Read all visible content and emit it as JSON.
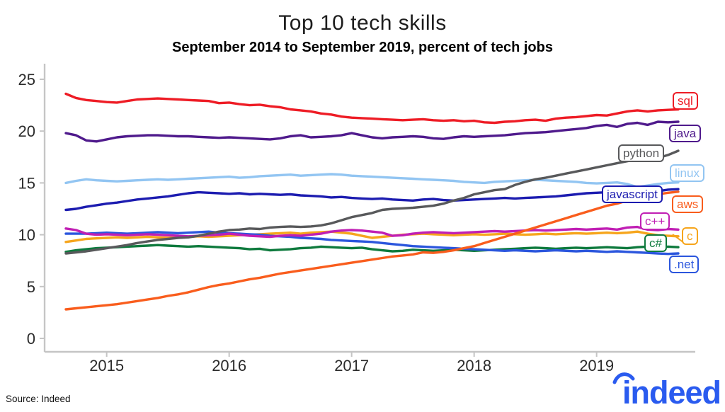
{
  "footer": {
    "source": "Source: Indeed",
    "logo_text": "indeed",
    "logo_color": "#2a5bef"
  },
  "chart_data": {
    "type": "line",
    "title": "Top 10 tech skills",
    "subtitle": "September 2014 to September 2019, percent of tech jobs",
    "grid": false,
    "legend_position": "right-inline-labels",
    "x_axis": {
      "unit": "month",
      "start": "September 2014",
      "end": "September 2019",
      "range_months": [
        0,
        60
      ],
      "tick_labels": [
        "2015",
        "2016",
        "2017",
        "2018",
        "2019"
      ],
      "tick_months": [
        4,
        16,
        28,
        40,
        52
      ]
    },
    "y_axis": {
      "label": "percent of tech jobs",
      "range": [
        0,
        25
      ],
      "ticks": [
        0,
        5,
        10,
        15,
        20,
        25
      ]
    },
    "axis_color": "#c5c5c5",
    "tick_text_color": "#2b2b2b",
    "series": [
      {
        "name": "sql",
        "color": "#ee1c25",
        "values": [
          23.6,
          23.2,
          23.0,
          22.9,
          22.8,
          22.75,
          22.9,
          23.05,
          23.1,
          23.15,
          23.1,
          23.05,
          23.0,
          22.95,
          22.9,
          22.7,
          22.75,
          22.6,
          22.5,
          22.55,
          22.4,
          22.3,
          22.1,
          22.0,
          21.9,
          21.7,
          21.6,
          21.4,
          21.3,
          21.25,
          21.2,
          21.15,
          21.1,
          21.05,
          21.1,
          21.15,
          21.05,
          21.0,
          21.05,
          20.95,
          21.0,
          20.85,
          20.8,
          20.9,
          20.95,
          21.05,
          21.1,
          21.0,
          21.2,
          21.3,
          21.35,
          21.45,
          21.55,
          21.5,
          21.7,
          21.9,
          22.0,
          21.9,
          22.0,
          22.05,
          22.1
        ]
      },
      {
        "name": "java",
        "color": "#4f1a8c",
        "values": [
          19.8,
          19.6,
          19.1,
          19.0,
          19.2,
          19.4,
          19.5,
          19.55,
          19.6,
          19.6,
          19.55,
          19.5,
          19.5,
          19.45,
          19.4,
          19.35,
          19.4,
          19.35,
          19.3,
          19.25,
          19.2,
          19.3,
          19.5,
          19.6,
          19.4,
          19.45,
          19.5,
          19.6,
          19.8,
          19.6,
          19.4,
          19.3,
          19.4,
          19.45,
          19.5,
          19.45,
          19.3,
          19.25,
          19.4,
          19.5,
          19.45,
          19.5,
          19.55,
          19.6,
          19.7,
          19.8,
          19.85,
          19.9,
          20.0,
          20.1,
          20.2,
          20.3,
          20.5,
          20.6,
          20.4,
          20.7,
          20.8,
          20.6,
          20.9,
          20.85,
          20.9
        ]
      },
      {
        "name": "python",
        "color": "#58595b",
        "values": [
          8.2,
          8.3,
          8.4,
          8.55,
          8.7,
          8.85,
          9.0,
          9.2,
          9.35,
          9.5,
          9.6,
          9.7,
          9.75,
          9.9,
          10.1,
          10.3,
          10.45,
          10.5,
          10.6,
          10.55,
          10.7,
          10.75,
          10.8,
          10.75,
          10.8,
          10.9,
          11.1,
          11.4,
          11.7,
          11.9,
          12.1,
          12.4,
          12.5,
          12.55,
          12.6,
          12.7,
          12.8,
          13.0,
          13.3,
          13.55,
          13.9,
          14.1,
          14.3,
          14.4,
          14.8,
          15.1,
          15.35,
          15.5,
          15.7,
          15.9,
          16.1,
          16.3,
          16.5,
          16.7,
          16.9,
          17.1,
          17.3,
          17.4,
          17.4,
          17.7,
          18.1
        ]
      },
      {
        "name": "linux",
        "color": "#92c5f2",
        "values": [
          15.0,
          15.2,
          15.35,
          15.25,
          15.2,
          15.15,
          15.2,
          15.25,
          15.3,
          15.35,
          15.3,
          15.35,
          15.4,
          15.45,
          15.5,
          15.55,
          15.6,
          15.5,
          15.55,
          15.65,
          15.7,
          15.75,
          15.8,
          15.7,
          15.75,
          15.8,
          15.85,
          15.8,
          15.7,
          15.65,
          15.6,
          15.55,
          15.5,
          15.45,
          15.4,
          15.35,
          15.3,
          15.25,
          15.2,
          15.1,
          15.05,
          15.0,
          15.1,
          15.15,
          15.2,
          15.25,
          15.3,
          15.25,
          15.2,
          15.15,
          15.1,
          15.0,
          14.95,
          15.0,
          15.05,
          14.9,
          14.6,
          14.75,
          14.9,
          15.0,
          15.05
        ]
      },
      {
        "name": "javascript",
        "color": "#1c1cb0",
        "values": [
          12.4,
          12.5,
          12.7,
          12.85,
          13.0,
          13.1,
          13.25,
          13.4,
          13.5,
          13.6,
          13.7,
          13.85,
          14.0,
          14.1,
          14.05,
          14.0,
          13.95,
          14.0,
          13.9,
          13.95,
          13.9,
          13.85,
          13.9,
          13.8,
          13.75,
          13.7,
          13.6,
          13.65,
          13.55,
          13.5,
          13.45,
          13.5,
          13.4,
          13.35,
          13.3,
          13.4,
          13.45,
          13.35,
          13.3,
          13.35,
          13.4,
          13.45,
          13.5,
          13.55,
          13.5,
          13.55,
          13.6,
          13.65,
          13.7,
          13.8,
          13.9,
          14.0,
          14.05,
          14.1,
          14.0,
          14.1,
          14.2,
          14.25,
          14.2,
          14.35,
          14.4
        ]
      },
      {
        "name": "aws",
        "color": "#f95d1d",
        "values": [
          2.8,
          2.9,
          3.0,
          3.1,
          3.2,
          3.3,
          3.45,
          3.6,
          3.75,
          3.9,
          4.1,
          4.25,
          4.45,
          4.7,
          4.95,
          5.15,
          5.3,
          5.5,
          5.7,
          5.85,
          6.05,
          6.25,
          6.4,
          6.55,
          6.7,
          6.85,
          7.0,
          7.15,
          7.3,
          7.45,
          7.6,
          7.75,
          7.9,
          8.0,
          8.1,
          8.3,
          8.25,
          8.35,
          8.5,
          8.7,
          8.9,
          9.2,
          9.5,
          9.8,
          10.1,
          10.4,
          10.7,
          11.0,
          11.3,
          11.6,
          11.9,
          12.2,
          12.5,
          12.8,
          13.0,
          13.3,
          13.5,
          13.7,
          13.9,
          14.05,
          14.15
        ]
      },
      {
        "name": "c++",
        "color": "#c01fb4",
        "values": [
          10.6,
          10.45,
          10.1,
          10.0,
          10.05,
          10.0,
          9.95,
          10.0,
          10.05,
          10.0,
          9.95,
          9.9,
          9.85,
          9.9,
          9.95,
          10.0,
          10.1,
          10.0,
          9.9,
          9.85,
          9.8,
          9.9,
          9.95,
          9.9,
          10.0,
          10.1,
          10.3,
          10.4,
          10.45,
          10.4,
          10.3,
          10.2,
          9.9,
          9.95,
          10.1,
          10.2,
          10.25,
          10.2,
          10.15,
          10.2,
          10.25,
          10.3,
          10.35,
          10.3,
          10.35,
          10.4,
          10.45,
          10.4,
          10.45,
          10.5,
          10.55,
          10.5,
          10.55,
          10.6,
          10.5,
          10.7,
          10.75,
          10.5,
          10.45,
          10.55,
          10.5
        ]
      },
      {
        "name": "c",
        "color": "#f6a51c",
        "values": [
          9.3,
          9.45,
          9.6,
          9.65,
          9.7,
          9.75,
          9.7,
          9.75,
          9.8,
          9.75,
          9.7,
          9.75,
          9.8,
          9.85,
          9.8,
          9.85,
          9.9,
          9.95,
          10.0,
          10.05,
          10.1,
          10.15,
          10.2,
          10.1,
          10.2,
          10.25,
          10.3,
          10.2,
          10.1,
          9.9,
          9.7,
          9.8,
          9.9,
          10.0,
          10.05,
          10.1,
          10.05,
          10.0,
          9.95,
          10.0,
          10.05,
          10.0,
          10.05,
          10.1,
          10.05,
          10.0,
          10.05,
          10.1,
          10.05,
          10.1,
          10.15,
          10.1,
          10.15,
          10.2,
          10.15,
          10.2,
          10.3,
          10.1,
          9.95,
          9.9,
          9.85
        ]
      },
      {
        "name": "c#",
        "color": "#0e7a3d",
        "values": [
          8.35,
          8.5,
          8.6,
          8.7,
          8.75,
          8.8,
          8.85,
          8.9,
          8.95,
          9.0,
          8.95,
          8.9,
          8.85,
          8.9,
          8.85,
          8.8,
          8.75,
          8.7,
          8.6,
          8.65,
          8.5,
          8.55,
          8.6,
          8.7,
          8.75,
          8.85,
          8.8,
          8.75,
          8.7,
          8.75,
          8.6,
          8.5,
          8.4,
          8.45,
          8.55,
          8.5,
          8.45,
          8.5,
          8.55,
          8.5,
          8.45,
          8.5,
          8.55,
          8.6,
          8.65,
          8.7,
          8.75,
          8.7,
          8.65,
          8.7,
          8.75,
          8.7,
          8.75,
          8.8,
          8.75,
          8.7,
          8.8,
          8.85,
          8.8,
          8.85,
          8.8
        ]
      },
      {
        "name": ".net",
        "color": "#2b56dd",
        "values": [
          10.1,
          10.1,
          10.1,
          10.15,
          10.2,
          10.15,
          10.1,
          10.15,
          10.2,
          10.25,
          10.2,
          10.15,
          10.2,
          10.25,
          10.3,
          10.2,
          10.15,
          10.1,
          10.05,
          10.0,
          9.9,
          9.85,
          9.8,
          9.7,
          9.65,
          9.6,
          9.5,
          9.45,
          9.4,
          9.35,
          9.3,
          9.2,
          9.1,
          9.0,
          8.9,
          8.85,
          8.8,
          8.75,
          8.7,
          8.65,
          8.6,
          8.55,
          8.5,
          8.45,
          8.5,
          8.45,
          8.4,
          8.45,
          8.5,
          8.45,
          8.4,
          8.45,
          8.4,
          8.35,
          8.4,
          8.35,
          8.3,
          8.25,
          8.2,
          8.15,
          8.2
        ]
      }
    ]
  }
}
